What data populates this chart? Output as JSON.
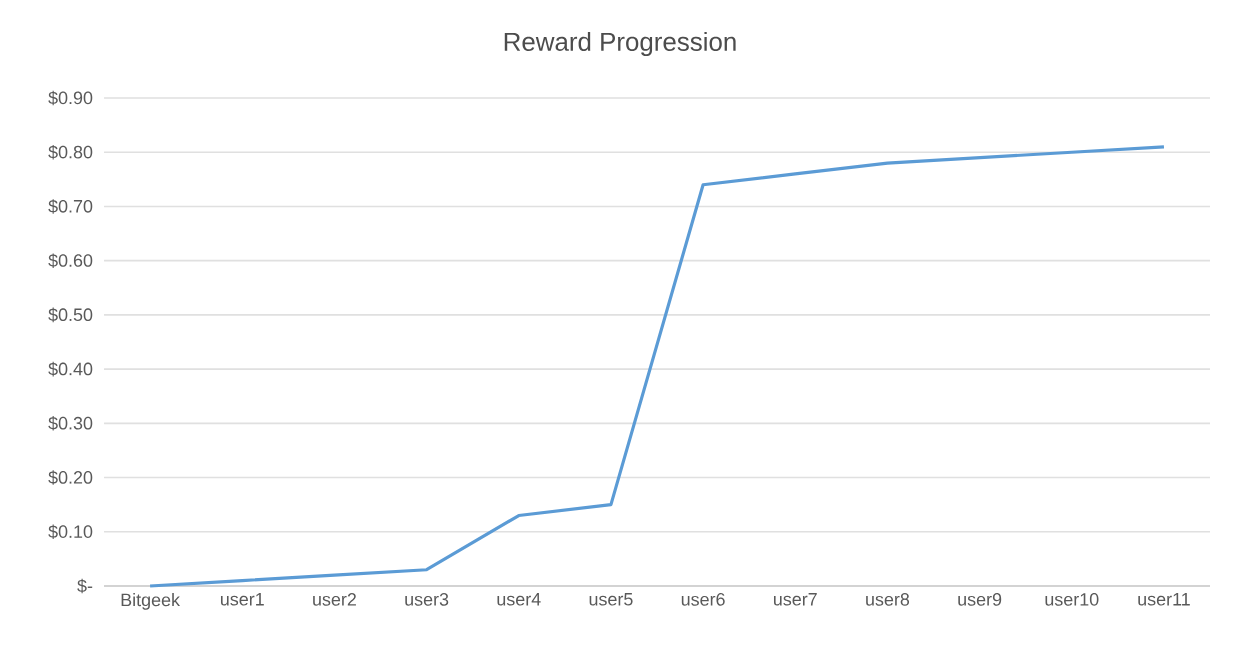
{
  "chart_data": {
    "type": "line",
    "title": "Reward Progression",
    "categories": [
      "Bitgeek",
      "user1",
      "user2",
      "user3",
      "user4",
      "user5",
      "user6",
      "user7",
      "user8",
      "user9",
      "user10",
      "user11"
    ],
    "series": [
      {
        "color": "#5b9bd5",
        "values": [
          0,
          0.01,
          0.02,
          0.03,
          0.13,
          0.15,
          0.74,
          0.76,
          0.78,
          0.79,
          0.8,
          0.81
        ]
      }
    ],
    "ylim": [
      0,
      0.9
    ],
    "yticks": [
      {
        "value": 0,
        "label": "$-"
      },
      {
        "value": 0.1,
        "label": "$0.10"
      },
      {
        "value": 0.2,
        "label": "$0.20"
      },
      {
        "value": 0.3,
        "label": "$0.30"
      },
      {
        "value": 0.4,
        "label": "$0.40"
      },
      {
        "value": 0.5,
        "label": "$0.50"
      },
      {
        "value": 0.6,
        "label": "$0.60"
      },
      {
        "value": 0.7,
        "label": "$0.70"
      },
      {
        "value": 0.8,
        "label": "$0.80"
      },
      {
        "value": 0.9,
        "label": "$0.90"
      }
    ],
    "grid": "y",
    "marker": "none",
    "line_style": "solid"
  }
}
